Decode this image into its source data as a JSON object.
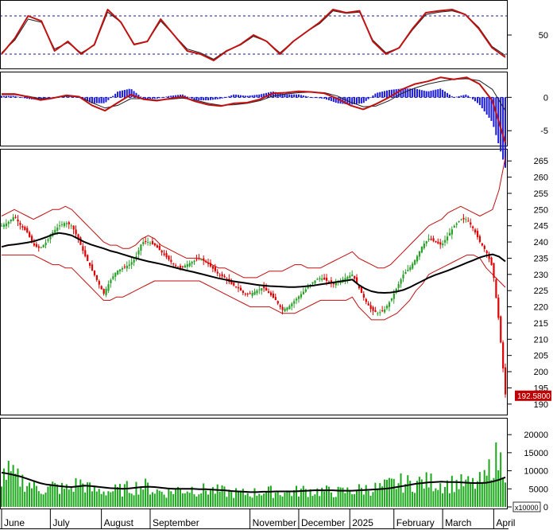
{
  "chart_data": {
    "type": "line",
    "months": [
      "June",
      "July",
      "August",
      "September",
      "November",
      "December",
      "2025",
      "February",
      "March",
      "April"
    ],
    "month_index": [
      0,
      21,
      43,
      64,
      107,
      128,
      150,
      169,
      190,
      212
    ],
    "n_bars": 218,
    "colors": {
      "up": "#2aa02a",
      "down": "#e00000",
      "bb": "#c01010",
      "ma": "#000000",
      "stoch": "#c01010",
      "stoch_sig": "#202020",
      "macd": "#c01010",
      "macd_sig": "#202020",
      "hist": "#1a1ad8",
      "volume": "#1aa81a",
      "vol_ma": "#000000",
      "grid": "#1a1a8c",
      "price_tag": "#c00000"
    },
    "stochastic": {
      "yticks": [
        "50"
      ],
      "tick_values": [
        50
      ],
      "levels": [
        80,
        20
      ],
      "ylim": [
        0,
        100
      ],
      "k": [
        20,
        45,
        80,
        72,
        25,
        40,
        20,
        35,
        90,
        70,
        35,
        40,
        75,
        50,
        25,
        20,
        10,
        25,
        35,
        50,
        40,
        20,
        40,
        55,
        70,
        90,
        85,
        88,
        40,
        20,
        30,
        60,
        85,
        88,
        90,
        82,
        60,
        30,
        15
      ],
      "d": [
        22,
        42,
        75,
        70,
        28,
        38,
        22,
        34,
        86,
        70,
        36,
        40,
        72,
        50,
        28,
        22,
        12,
        26,
        34,
        48,
        40,
        22,
        40,
        55,
        68,
        88,
        84,
        86,
        42,
        22,
        30,
        58,
        82,
        86,
        88,
        82,
        62,
        32,
        18
      ]
    },
    "macd": {
      "yticks": [
        "0",
        "-5"
      ],
      "tick_values": [
        0,
        -5
      ],
      "ylim": [
        -7,
        3.5
      ],
      "line": [
        0.5,
        0.5,
        0.1,
        -0.4,
        -0.1,
        0.3,
        0.1,
        -1.2,
        -2.0,
        -0.8,
        0.4,
        -0.3,
        -0.5,
        -0.2,
        0.1,
        -0.6,
        -1.1,
        -1.3,
        -0.9,
        -0.8,
        -0.3,
        0.6,
        0.7,
        0.9,
        0.8,
        0.6,
        -0.2,
        -1.2,
        -1.8,
        -1.0,
        0.0,
        1.2,
        2.0,
        2.4,
        3.0,
        2.7,
        3.0,
        2.0,
        -0.5,
        -6.8
      ],
      "signal": [
        0.4,
        0.4,
        0.2,
        -0.2,
        -0.1,
        0.2,
        0.1,
        -0.8,
        -1.6,
        -1.2,
        -0.2,
        -0.2,
        -0.4,
        -0.3,
        -0.1,
        -0.4,
        -0.9,
        -1.2,
        -1.1,
        -0.9,
        -0.5,
        0.2,
        0.5,
        0.7,
        0.8,
        0.7,
        0.2,
        -0.7,
        -1.4,
        -1.3,
        -0.5,
        0.6,
        1.4,
        2.0,
        2.4,
        2.7,
        2.8,
        2.5,
        1.2,
        -2.0
      ]
    },
    "price": {
      "yticks": [
        "190",
        "195",
        "200",
        "205",
        "210",
        "215",
        "220",
        "225",
        "230",
        "235",
        "240",
        "245",
        "250",
        "255",
        "260",
        "265"
      ],
      "tick_values": [
        190,
        195,
        200,
        205,
        210,
        215,
        220,
        225,
        230,
        235,
        240,
        245,
        250,
        255,
        260,
        265
      ],
      "ylim": [
        187,
        268
      ],
      "last_label": "192.5800",
      "last_value": 192.58,
      "close": [
        245,
        246,
        248,
        245,
        243,
        239,
        238,
        240,
        243,
        245,
        246,
        245,
        241,
        236,
        232,
        228,
        224,
        228,
        231,
        232,
        233,
        235,
        240,
        240,
        239,
        237,
        235,
        233,
        232,
        233,
        234,
        235,
        234,
        232,
        230,
        229,
        227,
        226,
        224,
        224,
        225,
        226,
        224,
        222,
        219,
        220,
        222,
        224,
        226,
        228,
        229,
        228,
        227,
        228,
        229,
        230,
        226,
        222,
        219,
        218,
        219,
        222,
        226,
        230,
        232,
        235,
        239,
        241,
        240,
        239,
        242,
        245,
        247,
        247,
        244,
        240,
        237,
        232,
        215,
        193
      ],
      "bb_upper": [
        248,
        249,
        250,
        249,
        248,
        247,
        248,
        249,
        250,
        250,
        251,
        250,
        248,
        246,
        244,
        242,
        240,
        239,
        239,
        238,
        238,
        239,
        241,
        242,
        241,
        239,
        238,
        237,
        236,
        235,
        235,
        235,
        234,
        233,
        232,
        232,
        231,
        230,
        229,
        229,
        229,
        230,
        231,
        231,
        231,
        232,
        233,
        233,
        232,
        232,
        232,
        233,
        234,
        235,
        236,
        237,
        235,
        234,
        233,
        232,
        232,
        233,
        235,
        237,
        239,
        241,
        243,
        245,
        246,
        247,
        249,
        250,
        251,
        250,
        249,
        248,
        249,
        250,
        256,
        266
      ],
      "bb_lower": [
        236,
        236,
        236,
        236,
        236,
        236,
        235,
        234,
        233,
        233,
        232,
        232,
        230,
        228,
        226,
        224,
        222,
        222,
        223,
        223,
        224,
        225,
        226,
        227,
        228,
        228,
        228,
        228,
        228,
        228,
        228,
        228,
        227,
        226,
        225,
        224,
        223,
        222,
        221,
        220,
        220,
        220,
        220,
        219,
        218,
        218,
        218,
        219,
        220,
        221,
        222,
        222,
        222,
        222,
        222,
        223,
        220,
        218,
        216,
        216,
        216,
        217,
        218,
        220,
        222,
        225,
        227,
        230,
        231,
        232,
        233,
        234,
        235,
        236,
        236,
        235,
        232,
        230,
        228,
        226
      ],
      "ma": [
        238.5,
        239,
        239.2,
        239.5,
        239.8,
        240.2,
        240.8,
        241.5,
        242.3,
        242.8,
        242.5,
        242,
        241,
        240,
        239.2,
        238.6,
        238,
        237.3,
        236.8,
        236.2,
        235.6,
        235,
        234.5,
        234,
        233.6,
        233.2,
        232.7,
        232.2,
        231.7,
        231.2,
        230.8,
        230.3,
        229.8,
        229.3,
        228.8,
        228.4,
        228,
        227.7,
        227.4,
        227.1,
        226.8,
        226.6,
        226.4,
        226.3,
        226.2,
        226.1,
        226.1,
        226.2,
        226.4,
        226.6,
        226.9,
        227.2,
        227.5,
        227.8,
        228.1,
        228.4,
        226.8,
        225.6,
        224.8,
        224.4,
        224.3,
        224.4,
        224.7,
        225.2,
        226,
        227,
        228,
        229,
        229.8,
        230.5,
        231.2,
        232,
        232.8,
        233.6,
        234.4,
        235.2,
        235.8,
        236.2,
        235.5,
        234
      ]
    },
    "volume": {
      "yticks": [
        "20000",
        "15000",
        "10000",
        "5000",
        "0"
      ],
      "tick_values": [
        20000,
        15000,
        10000,
        5000,
        0
      ],
      "ylim": [
        0,
        24000
      ],
      "unit_label": "x10000",
      "bars": [
        9000,
        10000,
        8500,
        8000,
        7000,
        6000,
        5500,
        5000,
        6000,
        5500,
        5200,
        5600,
        7000,
        6500,
        5000,
        4800,
        4700,
        4600,
        4800,
        5000,
        5600,
        5800,
        6200,
        5800,
        4700,
        4500,
        4300,
        4800,
        5200,
        5000,
        5400,
        4800,
        5000,
        4900,
        4600,
        4400,
        4200,
        4100,
        3900,
        4000,
        4200,
        4600,
        4400,
        4500,
        4300,
        4200,
        4400,
        4800,
        4800,
        4600,
        4700,
        4500,
        4400,
        4300,
        4500,
        4800,
        5000,
        5200,
        5500,
        5300,
        5800,
        6500,
        6800,
        7000,
        6700,
        7100,
        7200,
        7300,
        7100,
        6800,
        6600,
        7000,
        6800,
        6700,
        6500,
        7200,
        8000,
        14000,
        13500,
        12000
      ],
      "ma": [
        9500,
        9200,
        8800,
        8400,
        7800,
        7200,
        6600,
        6200,
        6000,
        5800,
        5600,
        5500,
        5700,
        5900,
        5800,
        5600,
        5400,
        5200,
        5100,
        5000,
        5100,
        5300,
        5500,
        5600,
        5500,
        5300,
        5100,
        5000,
        5000,
        5000,
        5000,
        4900,
        4900,
        4800,
        4700,
        4600,
        4400,
        4300,
        4200,
        4100,
        4100,
        4200,
        4200,
        4300,
        4300,
        4300,
        4300,
        4400,
        4500,
        4600,
        4600,
        4600,
        4600,
        4500,
        4500,
        4500,
        4600,
        4700,
        4800,
        4900,
        5000,
        5200,
        5500,
        5800,
        6100,
        6400,
        6600,
        6800,
        6900,
        7000,
        6900,
        6900,
        6800,
        6700,
        6600,
        6600,
        6700,
        7000,
        7500,
        8200
      ]
    }
  }
}
